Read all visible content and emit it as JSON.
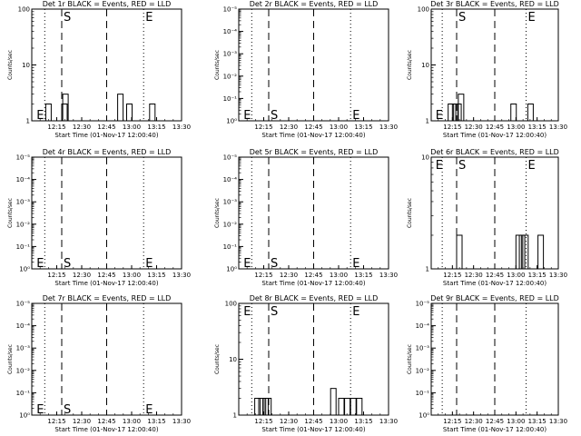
{
  "shared": {
    "x_ticks": [
      "12:15",
      "12:30",
      "12:45",
      "13:00",
      "13:15",
      "13:30"
    ],
    "x_label": "Start Time (01-Nov-17 12:00:40)",
    "y_label": "Counts/sec",
    "markers": {
      "E": "E",
      "S": "S"
    }
  },
  "chart_data": [
    {
      "type": "line",
      "title": "Det 1r BLACK = Events, RED = LLD",
      "ylog": true,
      "y_ticks": [
        "1",
        "10",
        "100"
      ],
      "ylim": [
        1,
        100
      ],
      "events": [
        [
          12.14,
          2
        ],
        [
          12.3,
          2
        ],
        [
          12.31,
          3
        ],
        [
          12.38,
          1
        ],
        [
          12.86,
          3
        ],
        [
          12.95,
          2
        ],
        [
          13.18,
          2
        ]
      ],
      "markers": [
        {
          "label": "E",
          "row": "bottom"
        },
        {
          "label": "S",
          "row": "top"
        },
        {
          "label": "E",
          "row": "top"
        }
      ]
    },
    {
      "type": "line",
      "title": "Det 2r BLACK = Events, RED = LLD",
      "ylog": true,
      "y_ticks": [
        "10⁰",
        "10⁻¹",
        "10⁻²",
        "10⁻³",
        "10⁻⁴",
        "10⁻⁵"
      ],
      "ylim": [
        0,
        1
      ],
      "events": [],
      "markers": [
        {
          "label": "E",
          "row": "bottom"
        },
        {
          "label": "S",
          "row": "bottom"
        },
        {
          "label": "E",
          "row": "bottom"
        }
      ]
    },
    {
      "type": "line",
      "title": "Det 3r BLACK = Events, RED = LLD",
      "ylog": true,
      "y_ticks": [
        "1",
        "10",
        "100"
      ],
      "ylim": [
        1,
        100
      ],
      "events": [
        [
          12.2,
          2
        ],
        [
          12.25,
          2
        ],
        [
          12.29,
          2
        ],
        [
          12.32,
          3
        ],
        [
          12.94,
          2
        ],
        [
          13.14,
          2
        ]
      ],
      "markers": [
        {
          "label": "E",
          "row": "bottom"
        },
        {
          "label": "S",
          "row": "top"
        },
        {
          "label": "E",
          "row": "top"
        }
      ]
    },
    {
      "type": "line",
      "title": "Det 4r BLACK = Events, RED = LLD",
      "ylog": true,
      "y_ticks": [
        "10⁰",
        "10⁻¹",
        "10⁻²",
        "10⁻³",
        "10⁻⁴",
        "10⁻⁵"
      ],
      "ylim": [
        0,
        1
      ],
      "events": [],
      "markers": [
        {
          "label": "E",
          "row": "bottom"
        },
        {
          "label": "S",
          "row": "bottom"
        },
        {
          "label": "E",
          "row": "bottom"
        }
      ]
    },
    {
      "type": "line",
      "title": "Det 5r BLACK = Events, RED = LLD",
      "ylog": true,
      "y_ticks": [
        "10⁰",
        "10⁻¹",
        "10⁻²",
        "10⁻³",
        "10⁻⁴",
        "10⁻⁵"
      ],
      "ylim": [
        0,
        1
      ],
      "events": [],
      "markers": [
        {
          "label": "E",
          "row": "bottom"
        },
        {
          "label": "S",
          "row": "bottom"
        },
        {
          "label": "E",
          "row": "bottom"
        }
      ]
    },
    {
      "type": "line",
      "title": "Det 6r BLACK = Events, RED = LLD",
      "ylog": true,
      "y_ticks": [
        "1",
        "10"
      ],
      "ylim": [
        1,
        10
      ],
      "events": [
        [
          12.3,
          2
        ],
        [
          13.0,
          2
        ],
        [
          13.04,
          2
        ],
        [
          13.08,
          2
        ],
        [
          13.26,
          2
        ]
      ],
      "markers": [
        {
          "label": "E",
          "row": "top"
        },
        {
          "label": "S",
          "row": "top"
        },
        {
          "label": "E",
          "row": "top"
        }
      ]
    },
    {
      "type": "line",
      "title": "Det 7r BLACK = Events, RED = LLD",
      "ylog": true,
      "y_ticks": [
        "10⁰",
        "10⁻¹",
        "10⁻²",
        "10⁻³",
        "10⁻⁴",
        "10⁻⁵"
      ],
      "ylim": [
        0,
        1
      ],
      "events": [],
      "markers": [
        {
          "label": "E",
          "row": "bottom"
        },
        {
          "label": "S",
          "row": "bottom"
        },
        {
          "label": "E",
          "row": "bottom"
        }
      ]
    },
    {
      "type": "line",
      "title": "Det 8r BLACK = Events, RED = LLD",
      "ylog": true,
      "y_ticks": [
        "1",
        "10",
        "100"
      ],
      "ylim": [
        1,
        100
      ],
      "events": [
        [
          12.16,
          2
        ],
        [
          12.2,
          2
        ],
        [
          12.24,
          2
        ],
        [
          12.27,
          2
        ],
        [
          12.92,
          3
        ],
        [
          13.0,
          2
        ],
        [
          13.06,
          2
        ],
        [
          13.12,
          2
        ],
        [
          13.18,
          2
        ]
      ],
      "markers": [
        {
          "label": "E",
          "row": "top"
        },
        {
          "label": "S",
          "row": "top"
        },
        {
          "label": "E",
          "row": "top"
        }
      ]
    },
    {
      "type": "line",
      "title": "Det 9r BLACK = Events, RED = LLD",
      "ylog": true,
      "y_ticks": [
        "10⁰",
        "10⁻¹",
        "10⁻²",
        "10⁻³",
        "10⁻⁴",
        "10⁻⁵"
      ],
      "ylim": [
        0,
        1
      ],
      "events": [],
      "markers": []
    }
  ]
}
